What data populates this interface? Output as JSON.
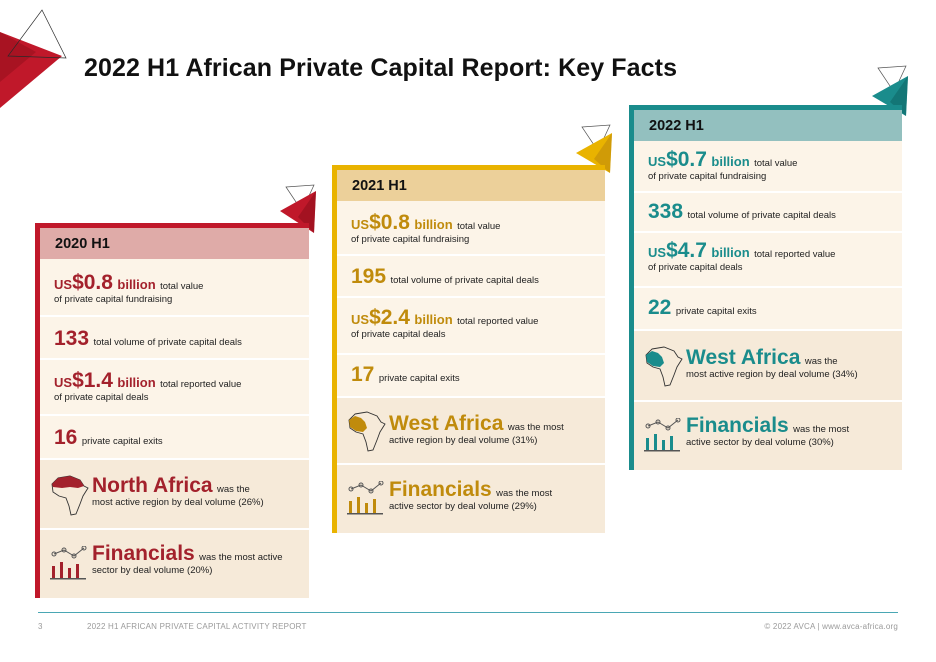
{
  "title": "2022 H1 African Private Capital Report: Key Facts",
  "colors": {
    "red": "#c0182a",
    "gold": "#e9b300",
    "teal": "#1a8c8c"
  },
  "cards": [
    {
      "period": "2020 H1",
      "fundraising": {
        "currency": "US",
        "value": "$0.8",
        "unit": "billion",
        "line1": "total value",
        "line2": "of private capital fundraising"
      },
      "deals": {
        "value": "133",
        "label": "total volume of private capital deals"
      },
      "reported": {
        "currency": "US",
        "value": "$1.4",
        "unit": "billion",
        "line1": "total reported value",
        "line2": "of private capital deals"
      },
      "exits": {
        "value": "16",
        "label": "private capital exits"
      },
      "region": {
        "name": "North Africa",
        "line1": "was the",
        "line2": "most active region by deal volume (26%)",
        "icon": "africa-map-icon"
      },
      "sector": {
        "name": "Financials",
        "line1": "was the most active",
        "line2": "sector by deal volume (20%)",
        "icon": "bar-chart-icon"
      }
    },
    {
      "period": "2021 H1",
      "fundraising": {
        "currency": "US",
        "value": "$0.8",
        "unit": "billion",
        "line1": "total value",
        "line2": "of private capital fundraising"
      },
      "deals": {
        "value": "195",
        "label": "total volume of private capital deals"
      },
      "reported": {
        "currency": "US",
        "value": "$2.4",
        "unit": "billion",
        "line1": "total reported value",
        "line2": "of private capital deals"
      },
      "exits": {
        "value": "17",
        "label": "private capital exits"
      },
      "region": {
        "name": "West Africa",
        "line1": "was the most",
        "line2": "active region by deal volume (31%)",
        "icon": "africa-map-icon"
      },
      "sector": {
        "name": "Financials",
        "line1": "was the most",
        "line2": "active sector by deal volume (29%)",
        "icon": "bar-chart-icon"
      }
    },
    {
      "period": "2022 H1",
      "fundraising": {
        "currency": "US",
        "value": "$0.7",
        "unit": "billion",
        "line1": "total value",
        "line2": "of private capital fundraising"
      },
      "deals": {
        "value": "338",
        "label": "total volume of private capital deals"
      },
      "reported": {
        "currency": "US",
        "value": "$4.7",
        "unit": "billion",
        "line1": "total reported value",
        "line2": "of private capital deals"
      },
      "exits": {
        "value": "22",
        "label": "private capital exits"
      },
      "region": {
        "name": "West Africa",
        "line1": "was the",
        "line2": "most active region by deal volume (34%)",
        "icon": "africa-map-icon"
      },
      "sector": {
        "name": "Financials",
        "line1": "was the most",
        "line2": "active sector by deal volume (30%)",
        "icon": "bar-chart-icon"
      }
    }
  ],
  "footer": {
    "page_number": "3",
    "report_name": "2022 H1 AFRICAN PRIVATE CAPITAL ACTIVITY REPORT",
    "copyright": "© 2022 AVCA | www.avca-africa.org"
  }
}
